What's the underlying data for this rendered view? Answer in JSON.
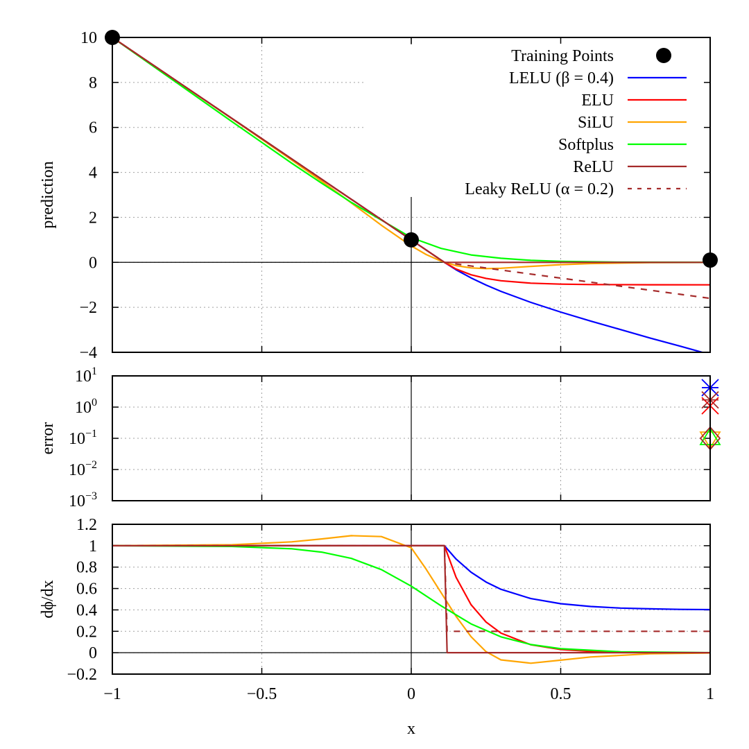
{
  "chart_data": [
    {
      "type": "line",
      "panel": "prediction",
      "ylabel": "prediction",
      "xlim": [
        -1,
        1
      ],
      "ylim": [
        -4,
        10
      ],
      "yticks": [
        "10",
        "8",
        "6",
        "4",
        "2",
        "0",
        "−2",
        "−4"
      ],
      "ytick_values": [
        10,
        8,
        6,
        4,
        2,
        0,
        -2,
        -4
      ],
      "grid": true,
      "legend_position": "top-right",
      "training_points": {
        "name": "Training Points",
        "x": [
          -1,
          0,
          1
        ],
        "y": [
          10,
          1,
          0.1
        ]
      },
      "series": [
        {
          "name": "LELU (β = 0.4)",
          "color": "#0000ff",
          "dash": false,
          "x": [
            -1,
            0.111,
            0.15,
            0.2,
            0.25,
            0.3,
            0.4,
            0.5,
            0.6,
            0.7,
            0.8,
            0.9,
            1
          ],
          "y": [
            10,
            0,
            -0.33,
            -0.69,
            -1.01,
            -1.29,
            -1.78,
            -2.21,
            -2.61,
            -2.99,
            -3.37,
            -3.73,
            -4.1
          ]
        },
        {
          "name": "ELU",
          "color": "#ff0000",
          "dash": false,
          "x": [
            -1,
            0.111,
            0.15,
            0.2,
            0.25,
            0.3,
            0.4,
            0.5,
            0.6,
            0.8,
            1
          ],
          "y": [
            10,
            0,
            -0.295,
            -0.551,
            -0.713,
            -0.817,
            -0.926,
            -0.97,
            -0.988,
            -0.998,
            -1.0
          ]
        },
        {
          "name": "SiLU",
          "color": "#ffa500",
          "dash": false,
          "x": [
            -1,
            -0.6,
            -0.4,
            -0.3,
            -0.2,
            -0.1,
            0,
            0.05,
            0.1,
            0.15,
            0.2,
            0.25,
            0.3,
            0.4,
            0.5,
            0.6,
            0.8,
            1
          ],
          "y": [
            10,
            6.39,
            4.55,
            3.61,
            2.64,
            1.65,
            0.731,
            0.349,
            0.053,
            -0.145,
            -0.248,
            -0.278,
            -0.263,
            -0.18,
            -0.103,
            -0.053,
            -0.013,
            -0.003
          ]
        },
        {
          "name": "Softplus",
          "color": "#00ff00",
          "dash": false,
          "x": [
            -1,
            -0.8,
            -0.6,
            -0.4,
            -0.3,
            -0.2,
            -0.1,
            0,
            0.1,
            0.2,
            0.3,
            0.4,
            0.5,
            0.7,
            1
          ],
          "y": [
            10,
            8.13,
            6.26,
            4.41,
            3.52,
            2.66,
            1.88,
            1.1,
            0.62,
            0.33,
            0.18,
            0.09,
            0.045,
            0.01,
            0.001
          ]
        },
        {
          "name": "ReLU",
          "color": "#a52a2a",
          "dash": false,
          "x": [
            -1,
            0.111,
            1
          ],
          "y": [
            10,
            0,
            0
          ]
        },
        {
          "name": "Leaky ReLU (α = 0.2)",
          "color": "#a52a2a",
          "dash": true,
          "x": [
            -1,
            0.111,
            1
          ],
          "y": [
            10,
            0,
            -1.6
          ]
        }
      ]
    },
    {
      "type": "scatter",
      "panel": "error",
      "ylabel": "error",
      "xlim": [
        -1,
        1
      ],
      "ylim": [
        0.001,
        10
      ],
      "yscale": "log",
      "yticks": [
        {
          "base": "10",
          "exp": "1"
        },
        {
          "base": "10",
          "exp": "0"
        },
        {
          "base": "10",
          "exp": "−1"
        },
        {
          "base": "10",
          "exp": "−2"
        },
        {
          "base": "10",
          "exp": "−3"
        }
      ],
      "ytick_values": [
        10,
        1,
        0.1,
        0.01,
        0.001
      ],
      "grid": true,
      "series": [
        {
          "name": "LELU (β = 0.4)",
          "color": "#0000ff",
          "marker": "asterisk",
          "x": [
            1
          ],
          "y": [
            4.2
          ]
        },
        {
          "name": "ELU",
          "color": "#ff0000",
          "marker": "x",
          "x": [
            1
          ],
          "y": [
            1.1
          ]
        },
        {
          "name": "SiLU",
          "color": "#ffa500",
          "marker": "triangle-down",
          "x": [
            1
          ],
          "y": [
            0.1
          ]
        },
        {
          "name": "Softplus",
          "color": "#00ff00",
          "marker": "triangle-up",
          "x": [
            1
          ],
          "y": [
            0.1
          ]
        },
        {
          "name": "ReLU",
          "color": "#a52a2a",
          "marker": "diamond",
          "x": [
            1
          ],
          "y": [
            0.1
          ]
        },
        {
          "name": "Leaky ReLU (α = 0.2)",
          "color": "#a52a2a",
          "marker": "asterisk",
          "x": [
            1
          ],
          "y": [
            1.7
          ]
        }
      ]
    },
    {
      "type": "line",
      "panel": "derivative",
      "ylabel": "dϕ/dx",
      "xlabel": "x",
      "xlim": [
        -1,
        1
      ],
      "ylim": [
        -0.2,
        1.2
      ],
      "xticks": [
        "−1",
        "−0.5",
        "0",
        "0.5",
        "1"
      ],
      "xtick_values": [
        -1,
        -0.5,
        0,
        0.5,
        1
      ],
      "yticks": [
        "1.2",
        "1",
        "0.8",
        "0.6",
        "0.4",
        "0.2",
        "0",
        "−0.2"
      ],
      "ytick_values": [
        1.2,
        1,
        0.8,
        0.6,
        0.4,
        0.2,
        0,
        -0.2
      ],
      "grid": true,
      "series": [
        {
          "name": "LELU (β = 0.4)",
          "color": "#0000ff",
          "dash": false,
          "x": [
            -1,
            0.111,
            0.15,
            0.2,
            0.25,
            0.3,
            0.4,
            0.5,
            0.6,
            0.7,
            0.8,
            0.9,
            1
          ],
          "y": [
            1,
            1,
            0.875,
            0.752,
            0.661,
            0.593,
            0.506,
            0.458,
            0.432,
            0.417,
            0.41,
            0.405,
            0.403
          ]
        },
        {
          "name": "ELU",
          "color": "#ff0000",
          "dash": false,
          "x": [
            -1,
            0.111,
            0.15,
            0.2,
            0.25,
            0.3,
            0.4,
            0.5,
            0.6,
            0.8,
            1
          ],
          "y": [
            1,
            1,
            0.705,
            0.449,
            0.287,
            0.183,
            0.074,
            0.03,
            0.012,
            0.002,
            0.0003
          ]
        },
        {
          "name": "SiLU",
          "color": "#ffa500",
          "dash": false,
          "x": [
            -1,
            -0.6,
            -0.4,
            -0.3,
            -0.2,
            -0.1,
            0,
            0.05,
            0.1,
            0.15,
            0.2,
            0.25,
            0.3,
            0.4,
            0.5,
            0.6,
            0.8,
            1
          ],
          "y": [
            1,
            1.009,
            1.036,
            1.063,
            1.094,
            1.085,
            0.98,
            0.78,
            0.56,
            0.34,
            0.15,
            0.01,
            -0.067,
            -0.098,
            -0.07,
            -0.04,
            -0.01,
            -0.002
          ]
        },
        {
          "name": "Softplus",
          "color": "#00ff00",
          "dash": false,
          "x": [
            -1,
            -0.6,
            -0.4,
            -0.3,
            -0.2,
            -0.1,
            0,
            0.1,
            0.2,
            0.3,
            0.4,
            0.5,
            0.7,
            1
          ],
          "y": [
            1,
            0.993,
            0.971,
            0.94,
            0.881,
            0.777,
            0.622,
            0.438,
            0.269,
            0.148,
            0.076,
            0.037,
            0.009,
            0.001
          ]
        },
        {
          "name": "ReLU",
          "color": "#a52a2a",
          "dash": false,
          "x": [
            -1,
            0.111,
            0.12,
            1
          ],
          "y": [
            1,
            1,
            0,
            0
          ]
        },
        {
          "name": "Leaky ReLU (α = 0.2)",
          "color": "#a52a2a",
          "dash": true,
          "x": [
            -1,
            0.111,
            0.12,
            1
          ],
          "y": [
            1,
            1,
            0.2,
            0.2
          ]
        }
      ]
    }
  ]
}
